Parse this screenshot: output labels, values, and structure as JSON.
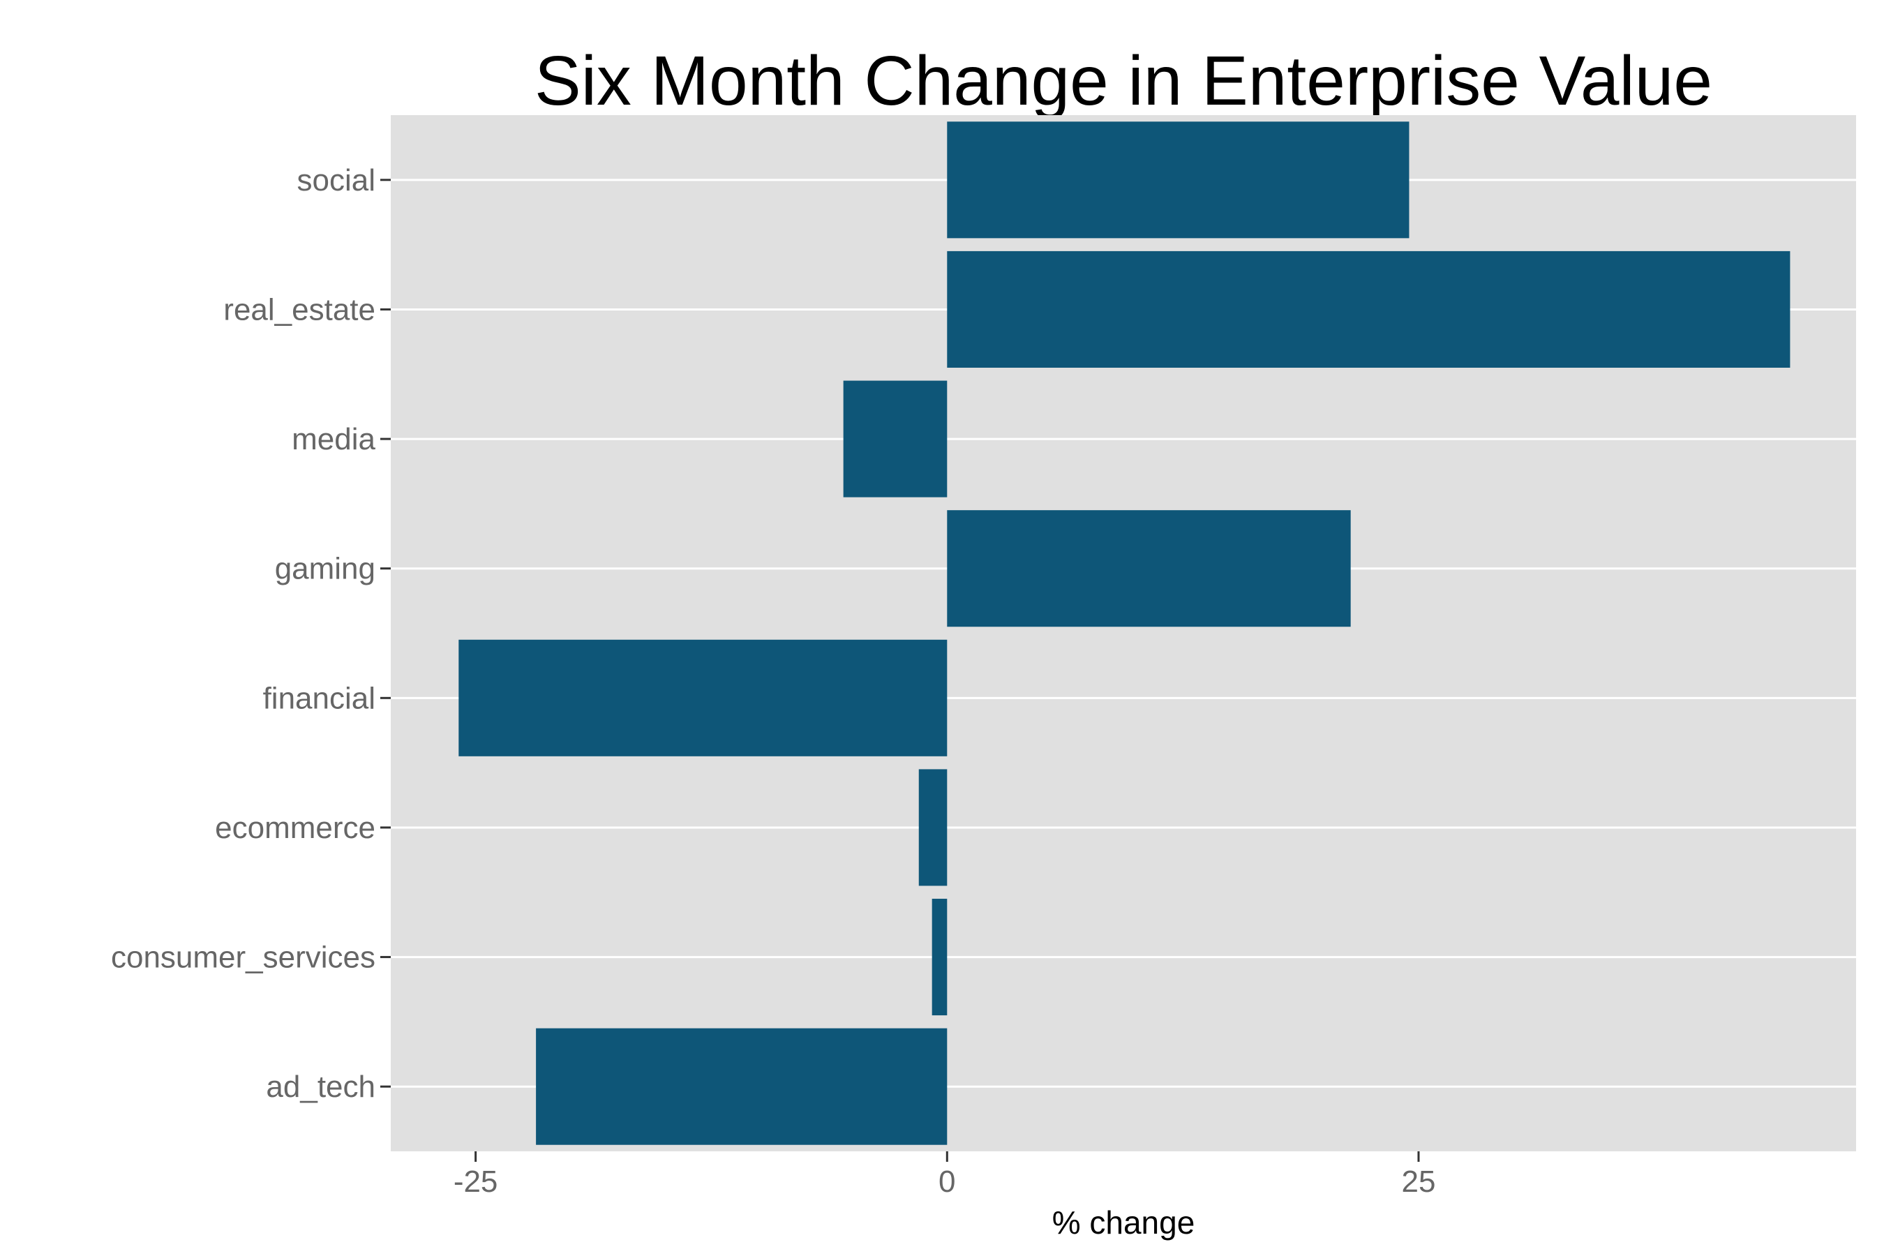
{
  "chart_data": {
    "type": "bar",
    "orientation": "horizontal",
    "title": "Six Month Change in Enterprise Value",
    "xlabel": "% change",
    "ylabel": "",
    "categories": [
      "social",
      "real_estate",
      "media",
      "gaming",
      "financial",
      "ecommerce",
      "consumer_services",
      "ad_tech"
    ],
    "values": [
      24.5,
      44.7,
      -5.5,
      21.4,
      -25.9,
      -1.5,
      -0.8,
      -21.8
    ],
    "xlim": [
      -29.5,
      48.2
    ],
    "xticks": [
      -25,
      0,
      25
    ],
    "xtick_labels": [
      "-25",
      "0",
      "25"
    ],
    "grid": true,
    "legend": "none",
    "colors": {
      "bar": "#0E5678",
      "panel_background": "#E0E0E0",
      "grid": "#FFFFFF",
      "tick_text": "#666666",
      "title_text": "#000000"
    }
  }
}
